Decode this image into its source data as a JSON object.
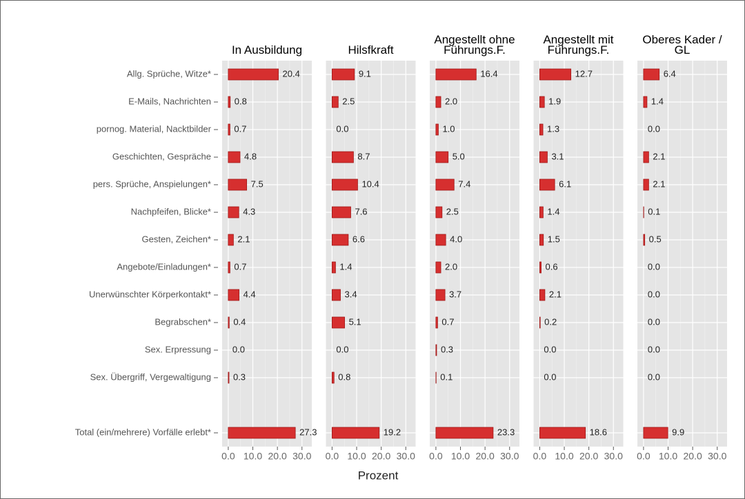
{
  "chart_data": {
    "type": "bar",
    "orientation": "horizontal",
    "x_label": "Prozent",
    "categories": [
      "Allg. Sprüche, Witze*",
      "E-Mails, Nachrichten",
      "pornog. Material, Nacktbilder",
      "Geschichten, Gespräche",
      "pers. Sprüche, Anspielungen*",
      "Nachpfeifen, Blicke*",
      "Gesten, Zeichen*",
      "Angebote/Einladungen*",
      "Unerwünschter Körperkontakt*",
      "Begrabschen*",
      "Sex. Erpressung",
      "Sex. Übergriff, Vergewaltigung",
      null,
      "Total (ein/mehrere) Vorfälle erlebt*"
    ],
    "color": "#d62f2f",
    "grid": true,
    "xlim": [
      -2.5,
      34
    ],
    "xticks": [
      {
        "value": 0,
        "label": "0.0"
      },
      {
        "value": 10,
        "label": "10.0"
      },
      {
        "value": 20,
        "label": "20.0"
      },
      {
        "value": 30,
        "label": "30.0"
      }
    ],
    "series": [
      {
        "name": "In Ausbildung",
        "values": [
          20.4,
          0.8,
          0.7,
          4.8,
          7.5,
          4.3,
          2.1,
          0.7,
          4.4,
          0.4,
          0,
          0.3,
          null,
          27.3
        ],
        "value_labels": [
          "20.4",
          "0.8",
          "0.7",
          "4.8",
          "7.5",
          "4.3",
          "2.1",
          "0.7",
          "4.4",
          "0.4",
          "0.0",
          "0.3",
          null,
          "27.3"
        ]
      },
      {
        "name": "Hilsfkraft",
        "values": [
          9.1,
          2.5,
          0,
          8.7,
          10.4,
          7.6,
          6.6,
          1.4,
          3.4,
          5.1,
          0,
          0.8,
          null,
          19.2
        ],
        "value_labels": [
          "9.1",
          "2.5",
          "0.0",
          "8.7",
          "10.4",
          "7.6",
          "6.6",
          "1.4",
          "3.4",
          "5.1",
          "0.0",
          "0.8",
          null,
          "19.2"
        ]
      },
      {
        "name": "Angestellt ohne\nFührungs.F.",
        "values": [
          16.4,
          2.0,
          1.0,
          5.0,
          7.4,
          2.5,
          4.0,
          2.0,
          3.7,
          0.7,
          0.3,
          0.1,
          null,
          23.3
        ],
        "value_labels": [
          "16.4",
          "2.0",
          "1.0",
          "5.0",
          "7.4",
          "2.5",
          "4.0",
          "2.0",
          "3.7",
          "0.7",
          "0.3",
          "0.1",
          null,
          "23.3"
        ]
      },
      {
        "name": "Angestellt mit\nFührungs.F.",
        "values": [
          12.7,
          1.9,
          1.3,
          3.1,
          6.1,
          1.4,
          1.5,
          0.6,
          2.1,
          0.2,
          0,
          0,
          null,
          18.6
        ],
        "value_labels": [
          "12.7",
          "1.9",
          "1.3",
          "3.1",
          "6.1",
          "1.4",
          "1.5",
          "0.6",
          "2.1",
          "0.2",
          "0.0",
          "0.0",
          null,
          "18.6"
        ]
      },
      {
        "name": "Oberes Kader /\nGL",
        "values": [
          6.4,
          1.4,
          0,
          2.1,
          2.1,
          0.1,
          0.5,
          0,
          0,
          0,
          0,
          0,
          null,
          9.9
        ],
        "value_labels": [
          "6.4",
          "1.4",
          "0.0",
          "2.1",
          "2.1",
          "0.1",
          "0.5",
          "0.0",
          "0.0",
          "0.0",
          "0.0",
          "0.0",
          null,
          "9.9"
        ]
      }
    ]
  }
}
